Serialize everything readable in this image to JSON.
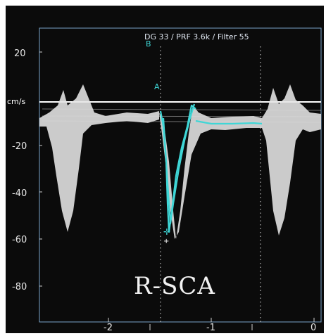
{
  "header": {
    "params": "DG 33 /   PRF 3.6k   / Filter 55",
    "marker_letter": "B"
  },
  "velocity_unit": "cm/s",
  "y_ticks": [
    "20",
    "-20",
    "-40",
    "-60",
    "-80"
  ],
  "x_ticks": [
    "-2",
    "-1",
    "0"
  ],
  "overlay_label": "R-SCA",
  "cursor_letter": "A",
  "colors": {
    "background": "#0b0b0b",
    "spectrum": "#e6e6e6",
    "trace": "#3fd6d6",
    "baseline": "#ffffff",
    "dotted_cursor": "#cfcfcf",
    "frame_outline": "#7aa3c8"
  }
}
